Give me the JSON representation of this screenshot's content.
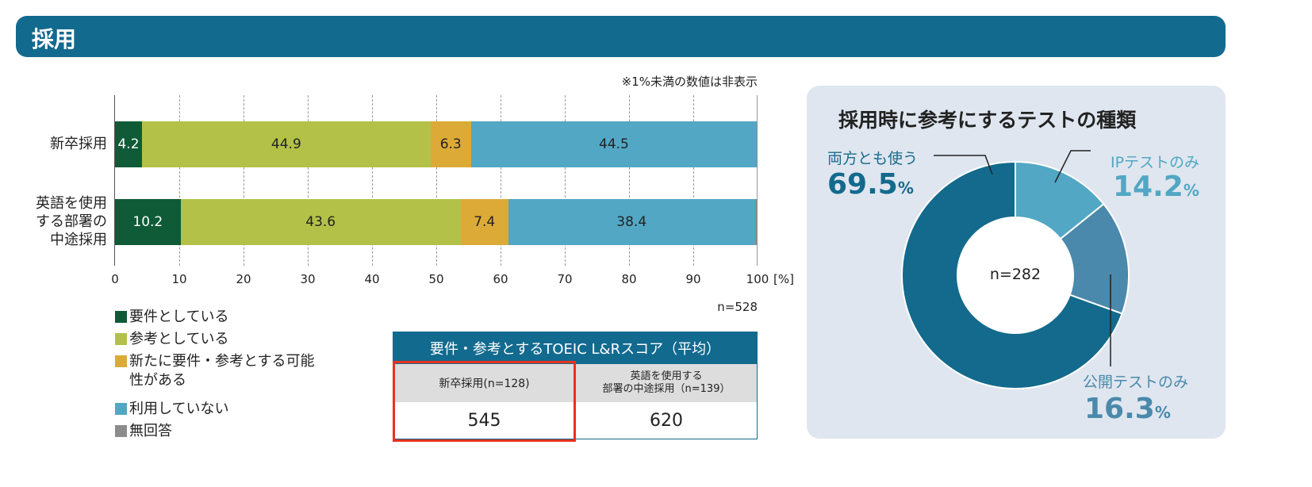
{
  "header": {
    "title": "採用"
  },
  "note": "※1%未満の数値は非表示",
  "chart_data": [
    {
      "type": "bar",
      "stacked": true,
      "orientation": "horizontal",
      "categories": [
        "新卒採用",
        "英語を使用する部署の中途採用"
      ],
      "series": [
        {
          "name": "要件としている",
          "color": "#0f5b38",
          "values": [
            4.2,
            10.2
          ]
        },
        {
          "name": "参考としている",
          "color": "#b3c149",
          "values": [
            44.9,
            43.6
          ]
        },
        {
          "name": "新たに要件・参考とする可能性がある",
          "color": "#dcaa37",
          "values": [
            6.3,
            7.4
          ]
        },
        {
          "name": "利用していない",
          "color": "#52a7c4",
          "values": [
            44.5,
            38.4
          ]
        },
        {
          "name": "無回答",
          "color": "#8c8c8c",
          "values": [
            0.1,
            0.4
          ]
        }
      ],
      "xlim": [
        0,
        100
      ],
      "xticks": [
        "0",
        "10",
        "20",
        "30",
        "40",
        "50",
        "60",
        "70",
        "80",
        "90",
        "100"
      ],
      "xunit": "[%]",
      "n": "n=528",
      "legend": "bottom-left"
    },
    {
      "type": "pie",
      "title": "採用時に参考にするテストの種類",
      "center_label": "n=282",
      "slices": [
        {
          "label": "IPテストのみ",
          "value": 14.2,
          "value_text": "14.2",
          "color": "#52a7c4"
        },
        {
          "label": "公開テストのみ",
          "value": 16.3,
          "value_text": "16.3",
          "color": "#4a89ab"
        },
        {
          "label": "両方とも使う",
          "value": 69.5,
          "value_text": "69.5",
          "color": "#136a8d"
        }
      ],
      "unit": "%"
    }
  ],
  "table": {
    "title": "要件・参考とするTOEIC L&Rスコア（平均）",
    "columns": [
      {
        "label": "新卒採用(n=128)",
        "value": "545"
      },
      {
        "label1": "英語を使用する",
        "label2": "部署の中途採用（n=139）",
        "value": "620"
      }
    ]
  },
  "legend_line2": "可能性がある",
  "legend_line1": "新たに要件・参考とする"
}
